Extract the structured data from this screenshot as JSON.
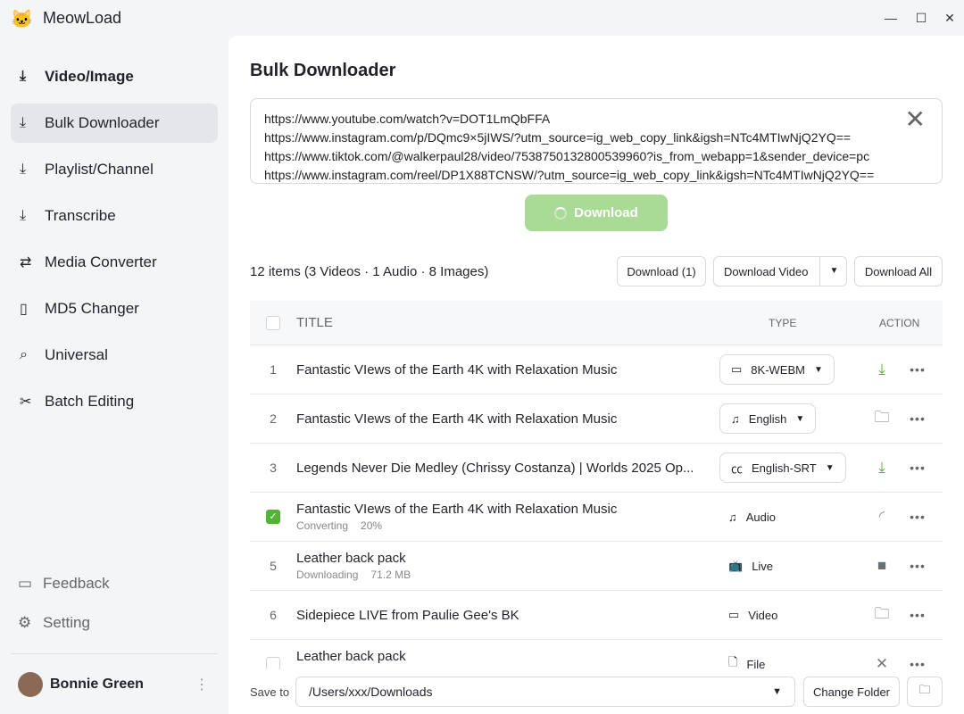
{
  "app": {
    "title": "MeowLoad"
  },
  "sidebar": {
    "items": [
      {
        "label": "Video/Image",
        "icon": "download-icon"
      },
      {
        "label": "Bulk Downloader",
        "icon": "download-icon"
      },
      {
        "label": "Playlist/Channel",
        "icon": "download-icon"
      },
      {
        "label": "Transcribe",
        "icon": "download-icon"
      },
      {
        "label": "Media Converter",
        "icon": "convert-icon"
      },
      {
        "label": "MD5 Changer",
        "icon": "file-edit-icon"
      },
      {
        "label": "Universal",
        "icon": "search-icon"
      },
      {
        "label": "Batch Editing",
        "icon": "scissors-icon"
      }
    ],
    "feedback": "Feedback",
    "setting": "Setting",
    "user": "Bonnie Green"
  },
  "main": {
    "title": "Bulk Downloader",
    "urls": [
      "https://www.youtube.com/watch?v=DOT1LmQbFFA",
      "https://www.instagram.com/p/DQmc9×5jIWS/?utm_source=ig_web_copy_link&igsh=NTc4MTIwNjQ2YQ==",
      "https://www.tiktok.com/@walkerpaul28/video/7538750132800539960?is_from_webapp=1&sender_device=pc",
      "https://www.instagram.com/reel/DP1X88TCNSW/?utm_source=ig_web_copy_link&igsh=NTc4MTIwNjQ2YQ=="
    ],
    "download_label": "Download",
    "summary": "12 items (3 Videos · 1 Audio · 8 Images)",
    "btn_download_sel": "Download (1)",
    "btn_download_video": "Download Video",
    "btn_download_all": "Download All",
    "columns": {
      "title": "TITLE",
      "type": "TYPE",
      "action": "ACTION"
    },
    "rows": [
      {
        "num": "1",
        "title": "Fantastic VIews of the Earth 4K with Relaxation Music",
        "type": "8K-WEBM",
        "dropdown": true,
        "action": "download"
      },
      {
        "num": "2",
        "title": "Fantastic VIews of the Earth 4K with Relaxation Music",
        "type": "English",
        "dropdown": true,
        "action": "folder"
      },
      {
        "num": "3",
        "title": "Legends Never Die Medley (Chrissy Costanza) | Worlds 2025 Op...",
        "type": "English-SRT",
        "dropdown": true,
        "action": "download"
      },
      {
        "num": "",
        "checked": true,
        "title": "Fantastic VIews of the Earth 4K with Relaxation Music",
        "status": "Converting",
        "detail": "20%",
        "type": "Audio",
        "action": "loading"
      },
      {
        "num": "5",
        "title": "Leather back pack",
        "status": "Downloading",
        "detail": "71.2 MB",
        "type": "Live",
        "action": "stop"
      },
      {
        "num": "6",
        "title": "Sidepiece LIVE from Paulie Gee's BK",
        "type": "Video",
        "action": "folder"
      },
      {
        "num": "",
        "checked": false,
        "title": "Leather back pack",
        "type": "File",
        "action": "cancel"
      }
    ],
    "save_to": "Save to",
    "path": "/Users/xxx/Downloads",
    "change_folder": "Change Folder"
  },
  "colors": {
    "accent": "#52b337",
    "download_btn": "#a9da96"
  }
}
